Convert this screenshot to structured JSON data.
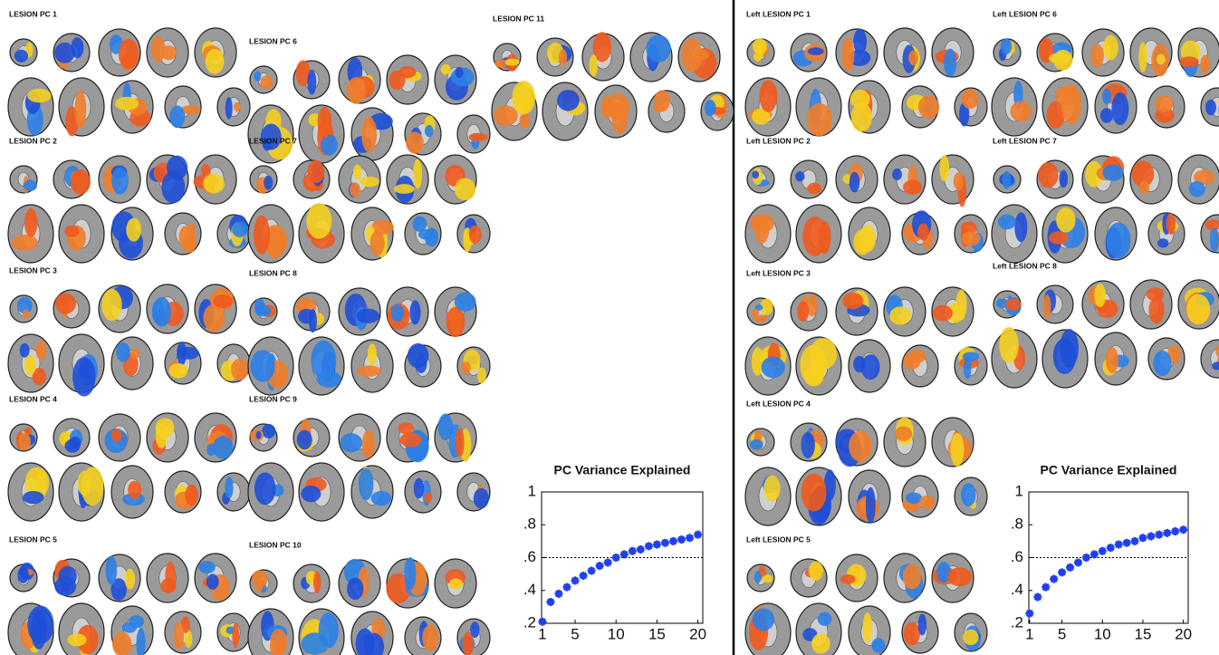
{
  "left_panel": {
    "labels": [
      "LESION PC 1",
      "LESION PC 2",
      "LESION PC 3",
      "LESION PC 4",
      "LESION PC 5",
      "LESION PC 6",
      "LESION PC 7",
      "LESION PC 8",
      "LESION PC 9",
      "LESION PC 10",
      "LESION PC 11"
    ]
  },
  "right_panel": {
    "labels": [
      "Left LESION PC 1",
      "Left LESION PC 2",
      "Left LESION PC 3",
      "Left LESION PC 4",
      "Left LESION PC 5",
      "Left LESION PC 6",
      "Left LESION PC 7",
      "Left LESION PC 8"
    ]
  },
  "chart_data": [
    {
      "type": "scatter",
      "title": "PC Variance Explained",
      "x": [
        1,
        2,
        3,
        4,
        5,
        6,
        7,
        8,
        9,
        10,
        11,
        12,
        13,
        14,
        15,
        16,
        17,
        18,
        19,
        20
      ],
      "values": [
        0.21,
        0.33,
        0.38,
        0.42,
        0.46,
        0.49,
        0.52,
        0.55,
        0.57,
        0.6,
        0.62,
        0.64,
        0.65,
        0.67,
        0.68,
        0.69,
        0.7,
        0.71,
        0.72,
        0.74
      ],
      "color": "#1f3fef",
      "reference_line": 0.6,
      "xlim": [
        0.9,
        20.6
      ],
      "xticks": [
        1,
        5,
        10,
        15,
        20
      ],
      "ylim": [
        0.2,
        1
      ],
      "yticks": [
        {
          "value": 0.2,
          "label": ".2"
        },
        {
          "value": 0.4,
          "label": ".4"
        },
        {
          "value": 0.6,
          "label": ".6"
        },
        {
          "value": 0.8,
          "label": ".8"
        },
        1
      ]
    },
    {
      "type": "scatter",
      "title": "PC Variance Explained",
      "x": [
        1,
        2,
        3,
        4,
        5,
        6,
        7,
        8,
        9,
        10,
        11,
        12,
        13,
        14,
        15,
        16,
        17,
        18,
        19,
        20
      ],
      "values": [
        0.26,
        0.36,
        0.42,
        0.47,
        0.51,
        0.54,
        0.57,
        0.6,
        0.62,
        0.64,
        0.66,
        0.68,
        0.69,
        0.7,
        0.72,
        0.73,
        0.74,
        0.75,
        0.76,
        0.77
      ],
      "color": "#1f3fef",
      "reference_line": 0.6,
      "xlim": [
        0.9,
        20.6
      ],
      "xticks": [
        1,
        5,
        10,
        15,
        20
      ],
      "ylim": [
        0.2,
        1
      ],
      "yticks": [
        {
          "value": 0.2,
          "label": ".2"
        },
        {
          "value": 0.4,
          "label": ".4"
        },
        {
          "value": 0.6,
          "label": ".6"
        },
        {
          "value": 0.8,
          "label": ".8"
        },
        1
      ]
    }
  ]
}
